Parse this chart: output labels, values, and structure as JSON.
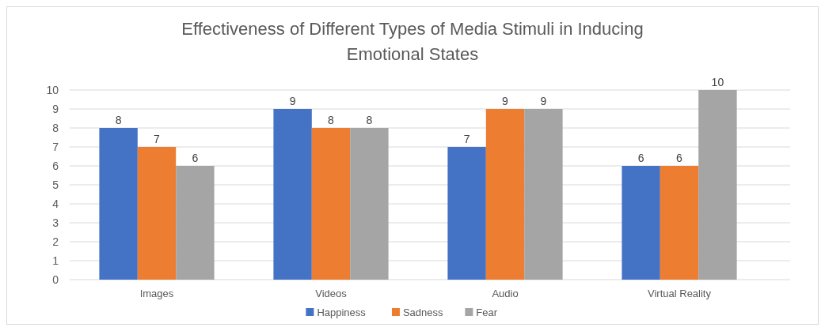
{
  "chart_data": {
    "type": "bar",
    "title": "Effectiveness of Different Types of Media Stimuli in Inducing Emotional States",
    "categories": [
      "Images",
      "Videos",
      "Audio",
      "Virtual Reality"
    ],
    "series": [
      {
        "name": "Happiness",
        "color": "#4472c4",
        "values": [
          8,
          9,
          7,
          6
        ]
      },
      {
        "name": "Sadness",
        "color": "#ed7d31",
        "values": [
          7,
          8,
          9,
          6
        ]
      },
      {
        "name": "Fear",
        "color": "#a5a5a5",
        "values": [
          6,
          8,
          9,
          10
        ]
      }
    ],
    "ylim": [
      0,
      10
    ],
    "yticks": [
      0,
      1,
      2,
      3,
      4,
      5,
      6,
      7,
      8,
      9,
      10
    ],
    "grid": true,
    "legend": "bottom",
    "data_labels": true
  }
}
